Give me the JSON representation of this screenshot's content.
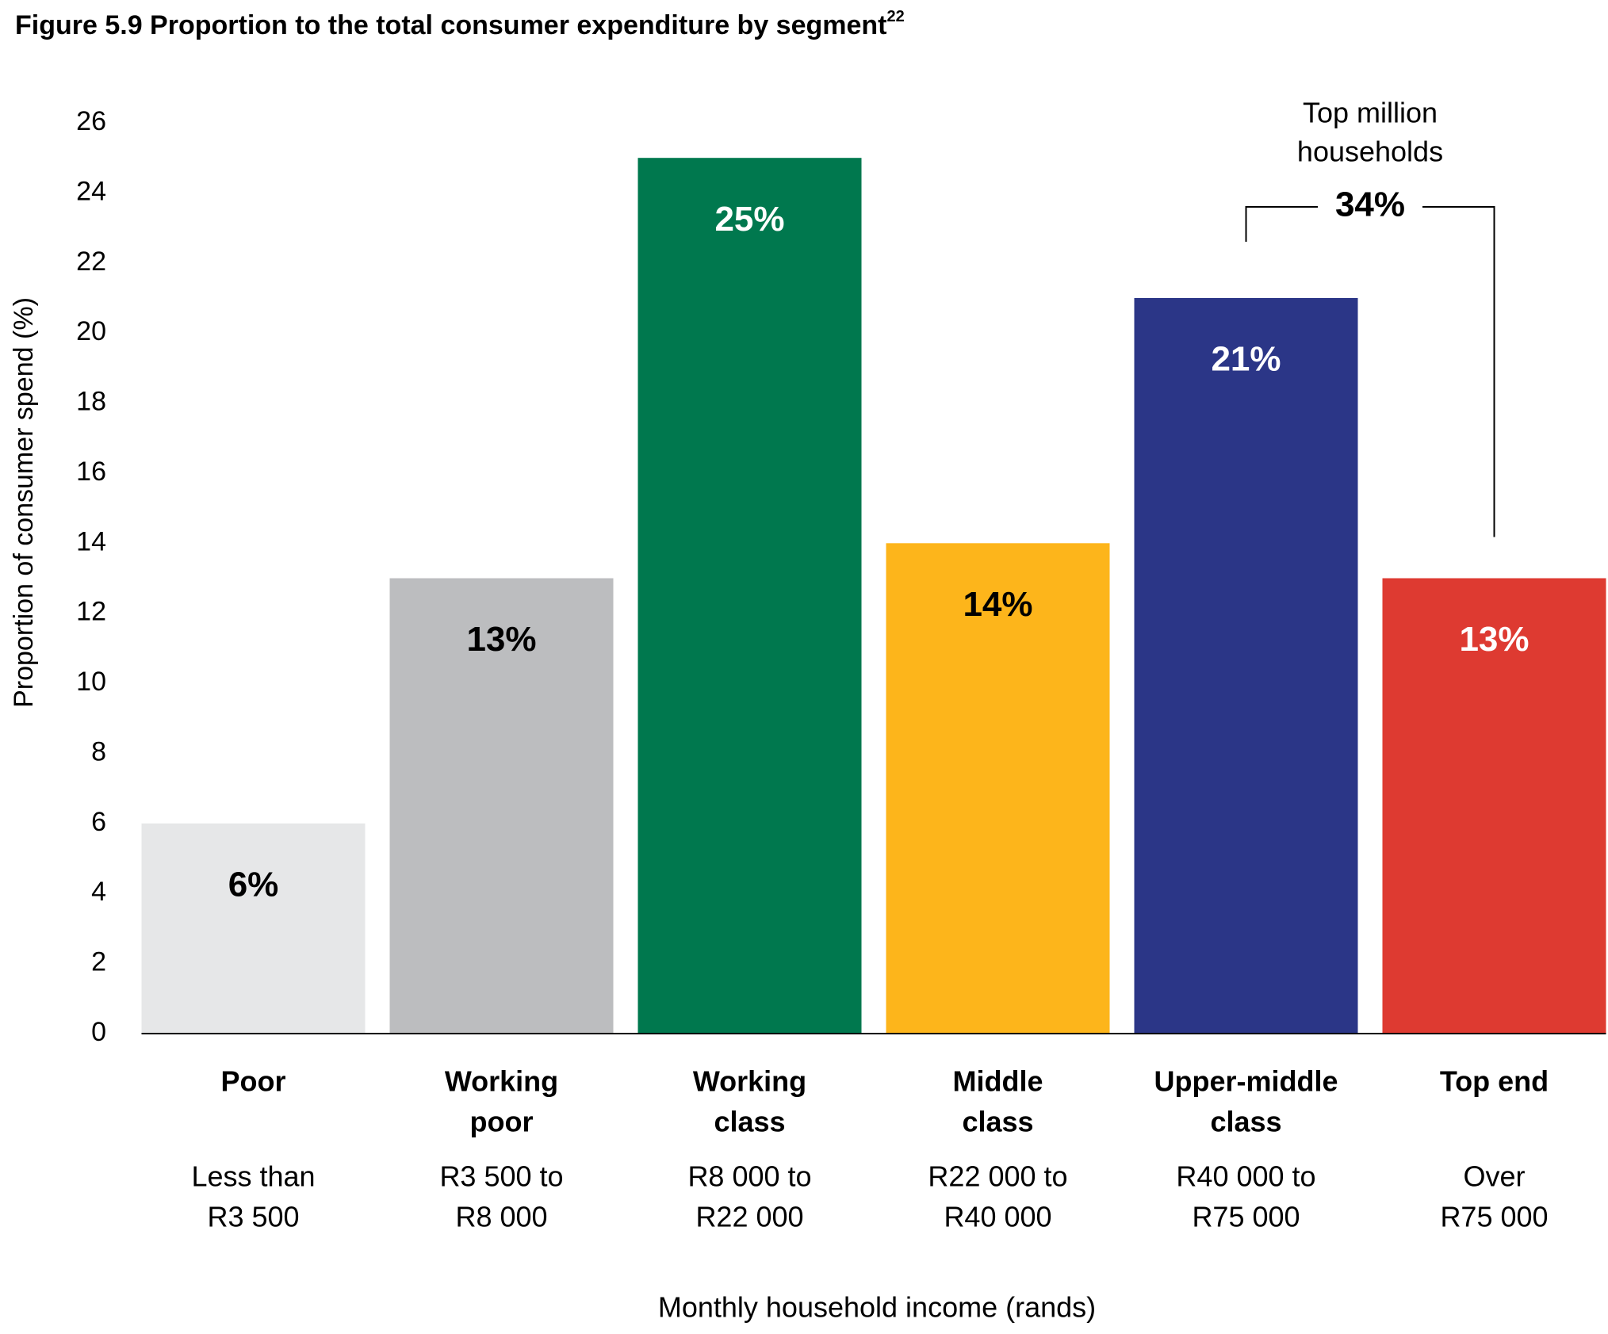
{
  "chart_data": {
    "type": "bar",
    "title": "Figure 5.9 Proportion to the total consumer expenditure by segment",
    "title_superscript": "22",
    "categories": [
      [
        "Poor"
      ],
      [
        "Working",
        "poor"
      ],
      [
        "Working",
        "class"
      ],
      [
        "Middle",
        "class"
      ],
      [
        "Upper-middle",
        "class"
      ],
      [
        "Top end"
      ]
    ],
    "income_ranges": [
      [
        "Less than",
        "R3 500"
      ],
      [
        "R3 500 to",
        "R8 000"
      ],
      [
        "R8 000 to",
        "R22 000"
      ],
      [
        "R22 000 to",
        "R40 000"
      ],
      [
        "R40 000 to",
        "R75 000"
      ],
      [
        "Over",
        "R75 000"
      ]
    ],
    "values": [
      6,
      13,
      25,
      14,
      21,
      13
    ],
    "value_labels": [
      "6%",
      "13%",
      "25%",
      "14%",
      "21%",
      "13%"
    ],
    "colors": [
      "#e6e7e8",
      "#bcbdbf",
      "#00784e",
      "#fdb51b",
      "#2b3687",
      "#de3a31"
    ],
    "ylim": [
      0,
      26
    ],
    "yticks": [
      0,
      2,
      4,
      6,
      8,
      10,
      12,
      14,
      16,
      18,
      20,
      22,
      24,
      26
    ],
    "ylabel": "Proportion of consumer spend (%)",
    "xlabel": "Monthly household income (rands)",
    "grid": false,
    "annotation": {
      "lines": [
        "Top million",
        "households"
      ],
      "label": "34%"
    }
  }
}
